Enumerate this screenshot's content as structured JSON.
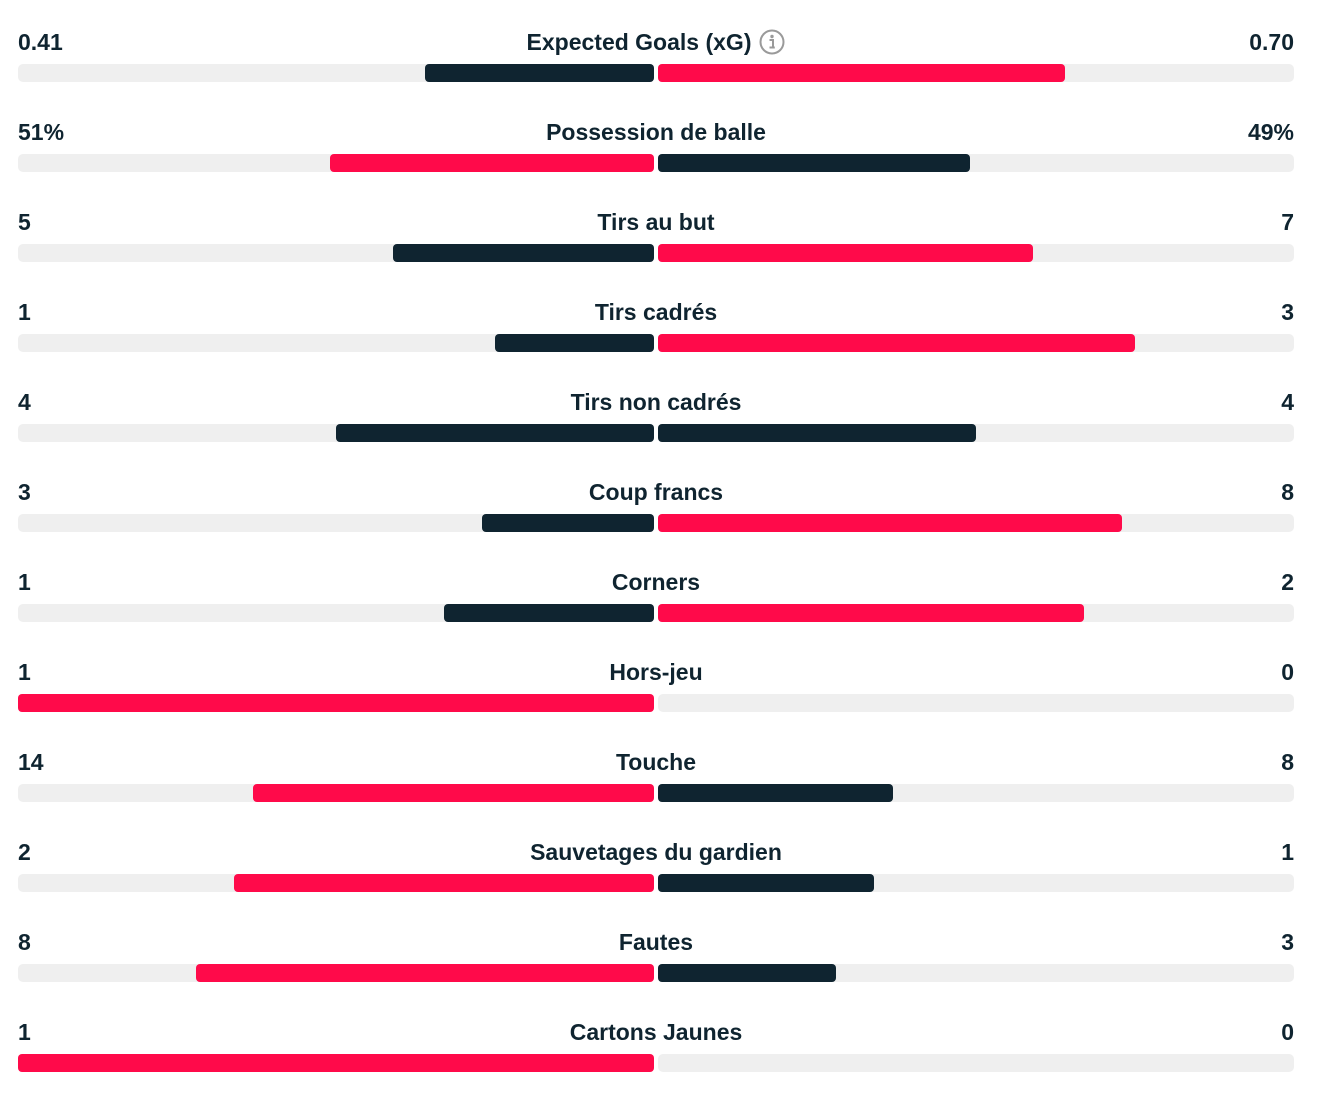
{
  "colors": {
    "dark": "#0f2430",
    "red": "#ff0a4a",
    "track": "#efefef",
    "text": "#0f2430",
    "icon": "#9a9a9a"
  },
  "stats": [
    {
      "title": "Expected Goals (xG)",
      "home": "0.41",
      "away": "0.70",
      "home_fill": 0.36,
      "away_fill": 0.64,
      "home_color": "dark",
      "away_color": "red",
      "info_icon": "info-icon"
    },
    {
      "title": "Possession de balle",
      "home": "51%",
      "away": "49%",
      "home_fill": 0.51,
      "away_fill": 0.49,
      "home_color": "red",
      "away_color": "dark"
    },
    {
      "title": "Tirs au but",
      "home": "5",
      "away": "7",
      "home_fill": 0.41,
      "away_fill": 0.59,
      "home_color": "dark",
      "away_color": "red"
    },
    {
      "title": "Tirs cadrés",
      "home": "1",
      "away": "3",
      "home_fill": 0.25,
      "away_fill": 0.75,
      "home_color": "dark",
      "away_color": "red"
    },
    {
      "title": "Tirs non cadrés",
      "home": "4",
      "away": "4",
      "home_fill": 0.5,
      "away_fill": 0.5,
      "home_color": "dark",
      "away_color": "dark"
    },
    {
      "title": "Coup francs",
      "home": "3",
      "away": "8",
      "home_fill": 0.27,
      "away_fill": 0.73,
      "home_color": "dark",
      "away_color": "red"
    },
    {
      "title": "Corners",
      "home": "1",
      "away": "2",
      "home_fill": 0.33,
      "away_fill": 0.67,
      "home_color": "dark",
      "away_color": "red"
    },
    {
      "title": "Hors-jeu",
      "home": "1",
      "away": "0",
      "home_fill": 1.0,
      "away_fill": 0.0,
      "home_color": "red",
      "away_color": "dark"
    },
    {
      "title": "Touche",
      "home": "14",
      "away": "8",
      "home_fill": 0.63,
      "away_fill": 0.37,
      "home_color": "red",
      "away_color": "dark"
    },
    {
      "title": "Sauvetages du gardien",
      "home": "2",
      "away": "1",
      "home_fill": 0.66,
      "away_fill": 0.34,
      "home_color": "red",
      "away_color": "dark"
    },
    {
      "title": "Fautes",
      "home": "8",
      "away": "3",
      "home_fill": 0.72,
      "away_fill": 0.28,
      "home_color": "red",
      "away_color": "dark"
    },
    {
      "title": "Cartons Jaunes",
      "home": "1",
      "away": "0",
      "home_fill": 1.0,
      "away_fill": 0.0,
      "home_color": "red",
      "away_color": "dark"
    }
  ]
}
